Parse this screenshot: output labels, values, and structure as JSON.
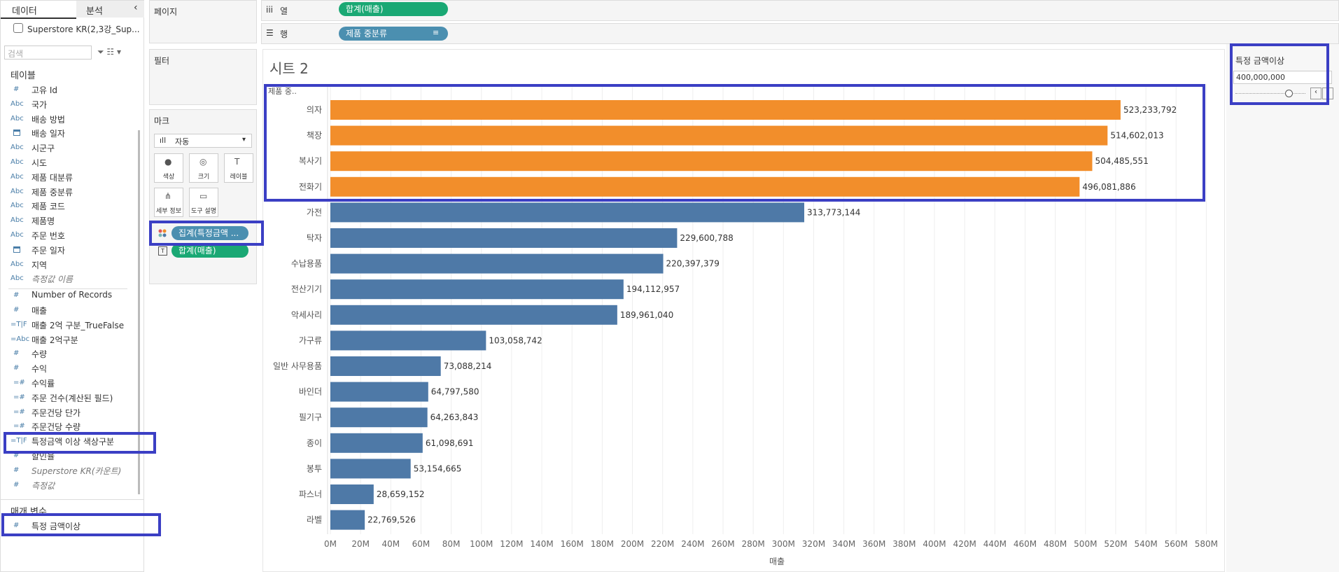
{
  "left_panel": {
    "tabs": [
      "데이터",
      "분석"
    ],
    "datasource": "Superstore KR(2,3강_Sup...",
    "search": "검색",
    "tables_title": "테이블",
    "fields": [
      {
        "icon": "#",
        "name": "고유 Id"
      },
      {
        "icon": "Abc",
        "name": "국가"
      },
      {
        "icon": "Abc",
        "name": "배송 방법"
      },
      {
        "name": "배송 일자"
      },
      {
        "icon": "Abc",
        "name": "시군구"
      },
      {
        "icon": "Abc",
        "name": "시도"
      },
      {
        "icon": "Abc",
        "name": "제품 대분류"
      },
      {
        "icon": "Abc",
        "name": "제품 중분류"
      },
      {
        "icon": "Abc",
        "name": "제품 코드"
      },
      {
        "icon": "Abc",
        "name": "제품명"
      },
      {
        "icon": "Abc",
        "name": "주문 번호"
      },
      {
        "name": "주문 일자"
      },
      {
        "icon": "Abc",
        "name": "지역"
      },
      {
        "icon": "Abc",
        "name": "측정값 이름",
        "italic": true
      },
      {
        "icon": "#",
        "name": "Number of Records"
      },
      {
        "icon": "#",
        "name": "매출"
      },
      {
        "icon": "=T|F",
        "name": "매출 2억 구분_TrueFalse"
      },
      {
        "icon": "=Abc",
        "name": "매출 2억구분"
      },
      {
        "icon": "#",
        "name": "수량"
      },
      {
        "icon": "#",
        "name": "수익"
      },
      {
        "icon": "=#",
        "name": "수익률"
      },
      {
        "icon": "=#",
        "name": "주문 건수(계산된 필드)"
      },
      {
        "icon": "=#",
        "name": "주문건당 단가"
      },
      {
        "icon": "=#",
        "name": "주문건당 수량"
      },
      {
        "icon": "=T|F",
        "name": "특정금액 이상 색상구분"
      },
      {
        "icon": "#",
        "name": "할인율"
      },
      {
        "icon": "#",
        "name": "Superstore KR(카운트)",
        "italic": true
      },
      {
        "icon": "#",
        "name": "측정값",
        "italic": true
      }
    ],
    "parameters_title": "매개 변수",
    "parameters": [
      {
        "icon": "#",
        "name": "특정 금액이상"
      }
    ]
  },
  "cards": {
    "pages": "페이지",
    "filters": "필터",
    "marks": "마크",
    "mark_type": "자동",
    "mark_buttons": [
      "색상",
      "크기",
      "레이블",
      "세부 정보",
      "도구 설명"
    ],
    "mark_pills": [
      "집계(특정금액 ...",
      "합계(매출)"
    ]
  },
  "shelves": {
    "columns_label": "열",
    "columns_pill": "합계(매출)",
    "rows_label": "행",
    "rows_pill": "제품 중분류"
  },
  "sheet_title": "시트 2",
  "parameter_card": {
    "title": "특정 금액이상",
    "value": "400,000,000"
  },
  "chart_data": {
    "type": "bar",
    "orientation": "horizontal",
    "row_header": "제품 중..",
    "x_label": "매출",
    "categories": [
      "의자",
      "책장",
      "복사기",
      "전화기",
      "가전",
      "탁자",
      "수납용품",
      "전산기기",
      "악세사리",
      "가구류",
      "일반 사무용품",
      "바인더",
      "필기구",
      "종이",
      "봉투",
      "파스너",
      "라벨"
    ],
    "values": [
      523233792,
      514602013,
      504485551,
      496081886,
      313773144,
      229600788,
      220397379,
      194112957,
      189961040,
      103058742,
      73088214,
      64797580,
      64263843,
      61098691,
      53154665,
      28659152,
      22769526
    ],
    "value_labels": [
      "523,233,792",
      "514,602,013",
      "504,485,551",
      "496,081,886",
      "313,773,144",
      "229,600,788",
      "220,397,379",
      "194,112,957",
      "189,961,040",
      "103,058,742",
      "73,088,214",
      "64,797,580",
      "64,263,843",
      "61,098,691",
      "53,154,665",
      "28,659,152",
      "22,769,526"
    ],
    "colors": [
      "#f28e2b",
      "#f28e2b",
      "#f28e2b",
      "#f28e2b",
      "#4e79a7",
      "#4e79a7",
      "#4e79a7",
      "#4e79a7",
      "#4e79a7",
      "#4e79a7",
      "#4e79a7",
      "#4e79a7",
      "#4e79a7",
      "#4e79a7",
      "#4e79a7",
      "#4e79a7",
      "#4e79a7"
    ],
    "xlim": [
      0,
      590000000
    ],
    "grid": true,
    "xticks": [
      {
        "value": 0,
        "label": "0M"
      },
      {
        "value": 20000000,
        "label": "20M"
      },
      {
        "value": 40000000,
        "label": "40M"
      },
      {
        "value": 60000000,
        "label": "60M"
      },
      {
        "value": 80000000,
        "label": "80M"
      },
      {
        "value": 100000000,
        "label": "100M"
      },
      {
        "value": 120000000,
        "label": "120M"
      },
      {
        "value": 140000000,
        "label": "140M"
      },
      {
        "value": 160000000,
        "label": "160M"
      },
      {
        "value": 180000000,
        "label": "180M"
      },
      {
        "value": 200000000,
        "label": "200M"
      },
      {
        "value": 220000000,
        "label": "220M"
      },
      {
        "value": 240000000,
        "label": "240M"
      },
      {
        "value": 260000000,
        "label": "260M"
      },
      {
        "value": 280000000,
        "label": "280M"
      },
      {
        "value": 300000000,
        "label": "300M"
      },
      {
        "value": 320000000,
        "label": "320M"
      },
      {
        "value": 340000000,
        "label": "340M"
      },
      {
        "value": 360000000,
        "label": "360M"
      },
      {
        "value": 380000000,
        "label": "380M"
      },
      {
        "value": 400000000,
        "label": "400M"
      },
      {
        "value": 420000000,
        "label": "420M"
      },
      {
        "value": 440000000,
        "label": "440M"
      },
      {
        "value": 460000000,
        "label": "460M"
      },
      {
        "value": 480000000,
        "label": "480M"
      },
      {
        "value": 500000000,
        "label": "500M"
      },
      {
        "value": 520000000,
        "label": "520M"
      },
      {
        "value": 540000000,
        "label": "540M"
      },
      {
        "value": 560000000,
        "label": "560M"
      },
      {
        "value": 580000000,
        "label": "580M"
      }
    ]
  }
}
